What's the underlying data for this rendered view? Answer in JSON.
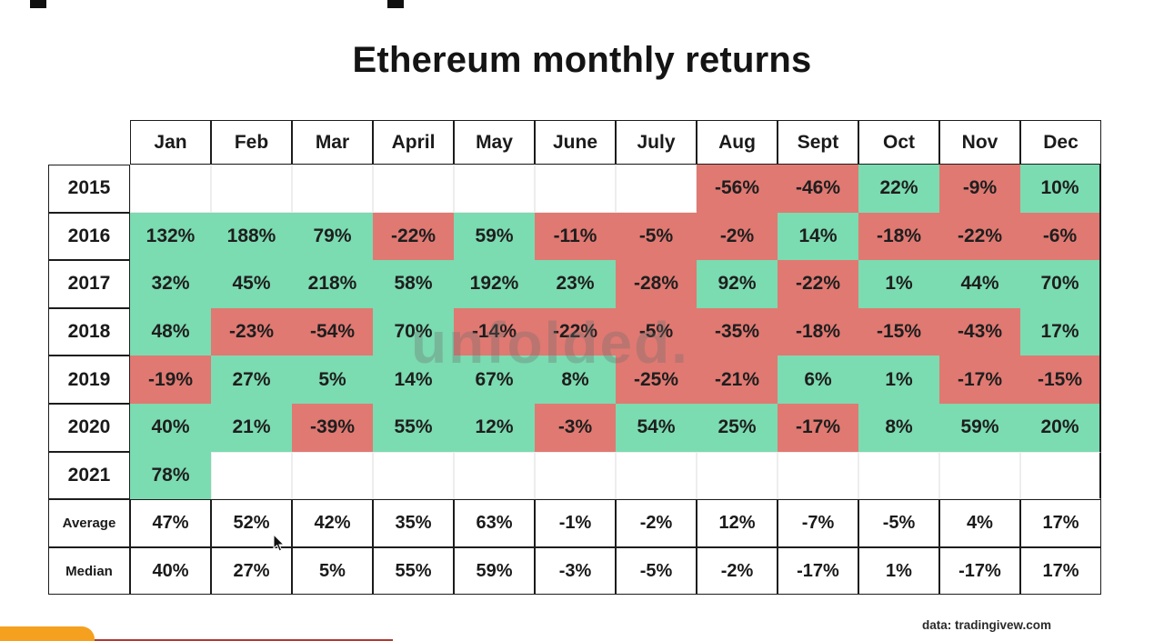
{
  "title": "Ethereum monthly returns",
  "watermark": "unfolded.",
  "source_note": "data: tradingivew.com",
  "colors": {
    "positive_cell": "#7bdbb1",
    "negative_cell": "#e07972",
    "accent_orange": "#f5a01e"
  },
  "chart_data": {
    "type": "heatmap",
    "title": "Ethereum monthly returns",
    "legend_rule": "green = positive monthly return, red = negative monthly return",
    "columns": [
      "Jan",
      "Feb",
      "Mar",
      "April",
      "May",
      "June",
      "July",
      "Aug",
      "Sept",
      "Oct",
      "Nov",
      "Dec"
    ],
    "rows": [
      {
        "label": "2015",
        "values": [
          null,
          null,
          null,
          null,
          null,
          null,
          null,
          "-56%",
          "-46%",
          "22%",
          "-9%",
          "10%"
        ]
      },
      {
        "label": "2016",
        "values": [
          "132%",
          "188%",
          "79%",
          "-22%",
          "59%",
          "-11%",
          "-5%",
          "-2%",
          "14%",
          "-18%",
          "-22%",
          "-6%"
        ]
      },
      {
        "label": "2017",
        "values": [
          "32%",
          "45%",
          "218%",
          "58%",
          "192%",
          "23%",
          "-28%",
          "92%",
          "-22%",
          "1%",
          "44%",
          "70%"
        ]
      },
      {
        "label": "2018",
        "values": [
          "48%",
          "-23%",
          "-54%",
          "70%",
          "-14%",
          "-22%",
          "-5%",
          "-35%",
          "-18%",
          "-15%",
          "-43%",
          "17%"
        ]
      },
      {
        "label": "2019",
        "values": [
          "-19%",
          "27%",
          "5%",
          "14%",
          "67%",
          "8%",
          "-25%",
          "-21%",
          "6%",
          "1%",
          "-17%",
          "-15%"
        ]
      },
      {
        "label": "2020",
        "values": [
          "40%",
          "21%",
          "-39%",
          "55%",
          "12%",
          "-3%",
          "54%",
          "25%",
          "-17%",
          "8%",
          "59%",
          "20%"
        ]
      },
      {
        "label": "2021",
        "values": [
          "78%",
          null,
          null,
          null,
          null,
          null,
          null,
          null,
          null,
          null,
          null,
          null
        ]
      }
    ],
    "summary_rows": [
      {
        "label": "Average",
        "values": [
          "47%",
          "52%",
          "42%",
          "35%",
          "63%",
          "-1%",
          "-2%",
          "12%",
          "-7%",
          "-5%",
          "4%",
          "17%"
        ]
      },
      {
        "label": "Median",
        "values": [
          "40%",
          "27%",
          "5%",
          "55%",
          "59%",
          "-3%",
          "-5%",
          "-2%",
          "-17%",
          "1%",
          "-17%",
          "17%"
        ]
      }
    ]
  }
}
